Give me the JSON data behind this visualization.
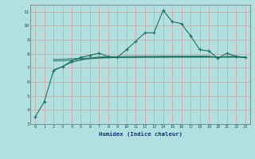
{
  "xlabel": "Humidex (Indice chaleur)",
  "background_color": "#b2dfdf",
  "grid_color": "#d4a0a0",
  "line_color": "#1a7060",
  "xlim": [
    -0.5,
    23.5
  ],
  "ylim": [
    3,
    11.5
  ],
  "yticks": [
    3,
    4,
    5,
    6,
    7,
    8,
    9,
    10,
    11
  ],
  "xticks": [
    0,
    1,
    2,
    3,
    4,
    5,
    6,
    7,
    8,
    9,
    10,
    11,
    12,
    13,
    14,
    15,
    16,
    17,
    18,
    19,
    20,
    21,
    22,
    23
  ],
  "line1_x": [
    0,
    1,
    2,
    3,
    4,
    5,
    6,
    7,
    8,
    9,
    10,
    11,
    12,
    13,
    14,
    15,
    16,
    17,
    18,
    19,
    20,
    21,
    22,
    23
  ],
  "line1_y": [
    3.5,
    4.6,
    6.8,
    7.1,
    7.5,
    7.75,
    7.9,
    8.05,
    7.8,
    7.75,
    8.3,
    8.9,
    9.5,
    9.5,
    11.1,
    10.3,
    10.15,
    9.3,
    8.3,
    8.2,
    7.7,
    8.05,
    7.82,
    7.75
  ],
  "line2_x": [
    2,
    3,
    4,
    5,
    6,
    7,
    8,
    9,
    10,
    11,
    12,
    13,
    14,
    15,
    16,
    17,
    18,
    19,
    20,
    21,
    22,
    23
  ],
  "line2_y": [
    6.85,
    7.1,
    7.4,
    7.55,
    7.7,
    7.78,
    7.8,
    7.8,
    7.82,
    7.83,
    7.83,
    7.83,
    7.84,
    7.84,
    7.84,
    7.84,
    7.84,
    7.84,
    7.75,
    7.82,
    7.82,
    7.77
  ],
  "line3_x": [
    2,
    3,
    4,
    5,
    6,
    7,
    8,
    9,
    10,
    11,
    12,
    13,
    14,
    15,
    16,
    17,
    18,
    19,
    20,
    21,
    22,
    23
  ],
  "line3_y": [
    7.5,
    7.5,
    7.55,
    7.6,
    7.65,
    7.7,
    7.72,
    7.73,
    7.74,
    7.75,
    7.76,
    7.76,
    7.76,
    7.77,
    7.77,
    7.77,
    7.77,
    7.77,
    7.77,
    7.77,
    7.77,
    7.75
  ],
  "line4_x": [
    2,
    3,
    4,
    5,
    6,
    7,
    8,
    9,
    10,
    11,
    12,
    13,
    14,
    15,
    16,
    17,
    18,
    19,
    20,
    21,
    22,
    23
  ],
  "line4_y": [
    7.6,
    7.62,
    7.65,
    7.68,
    7.7,
    7.72,
    7.73,
    7.74,
    7.75,
    7.75,
    7.76,
    7.76,
    7.76,
    7.77,
    7.77,
    7.77,
    7.77,
    7.77,
    7.77,
    7.77,
    7.77,
    7.75
  ]
}
